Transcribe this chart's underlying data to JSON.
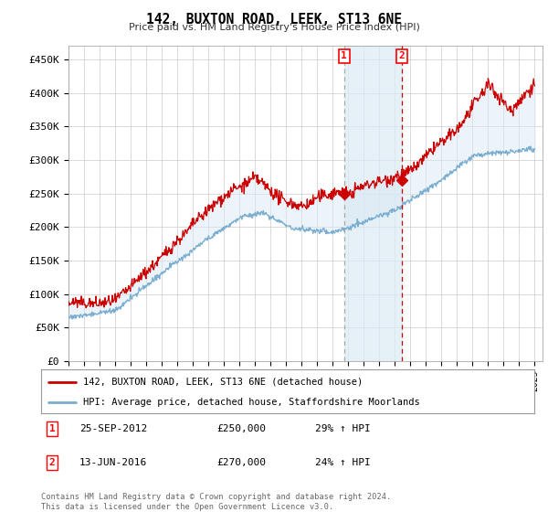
{
  "title": "142, BUXTON ROAD, LEEK, ST13 6NE",
  "subtitle": "Price paid vs. HM Land Registry's House Price Index (HPI)",
  "ylabel_ticks": [
    "£0",
    "£50K",
    "£100K",
    "£150K",
    "£200K",
    "£250K",
    "£300K",
    "£350K",
    "£400K",
    "£450K"
  ],
  "ytick_values": [
    0,
    50000,
    100000,
    150000,
    200000,
    250000,
    300000,
    350000,
    400000,
    450000
  ],
  "ylim": [
    0,
    470000
  ],
  "xlim_start": 1995.0,
  "xlim_end": 2025.5,
  "red_line_color": "#cc0000",
  "blue_line_color": "#7aadcf",
  "fill_color": "#daeaf5",
  "marker1_x": 2012.73,
  "marker1_y": 250000,
  "marker2_x": 2016.45,
  "marker2_y": 270000,
  "marker1_label": "1",
  "marker2_label": "2",
  "legend_red": "142, BUXTON ROAD, LEEK, ST13 6NE (detached house)",
  "legend_blue": "HPI: Average price, detached house, Staffordshire Moorlands",
  "table_date1": "25-SEP-2012",
  "table_price1": "£250,000",
  "table_pct1": "29% ↑ HPI",
  "table_date2": "13-JUN-2016",
  "table_price2": "£270,000",
  "table_pct2": "24% ↑ HPI",
  "footnote": "Contains HM Land Registry data © Crown copyright and database right 2024.\nThis data is licensed under the Open Government Licence v3.0.",
  "bg_color": "#ffffff",
  "plot_bg_color": "#ffffff",
  "grid_color": "#cccccc"
}
